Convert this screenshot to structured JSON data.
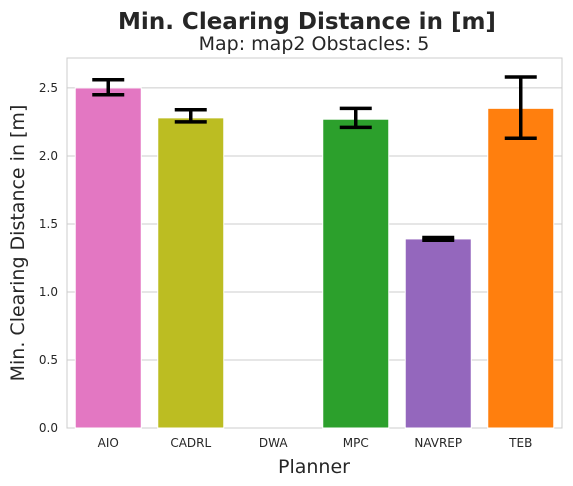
{
  "chart_data": {
    "type": "bar",
    "title": "Min. Clearing Distance in [m]",
    "subtitle": "Map: map2 Obstacles: 5",
    "xlabel": "Planner",
    "ylabel": "Min. Clearing Distance in [m]",
    "ylim": [
      0,
      2.72
    ],
    "yticks": [
      0.0,
      0.5,
      1.0,
      1.5,
      2.0,
      2.5
    ],
    "ytick_labels": [
      "0.0",
      "0.5",
      "1.0",
      "1.5",
      "2.0",
      "2.5"
    ],
    "grid": true,
    "categories": [
      "AIO",
      "CADRL",
      "DWA",
      "MPC",
      "NAVREP",
      "TEB"
    ],
    "values": [
      2.5,
      2.28,
      null,
      2.27,
      1.39,
      2.35
    ],
    "error_low": [
      2.45,
      2.25,
      null,
      2.21,
      1.38,
      2.13
    ],
    "error_high": [
      2.56,
      2.34,
      null,
      2.35,
      1.4,
      2.58
    ],
    "colors": [
      "#e377c2",
      "#bcbd22",
      null,
      "#2ca02c",
      "#9467bd",
      "#ff7f0e"
    ]
  }
}
